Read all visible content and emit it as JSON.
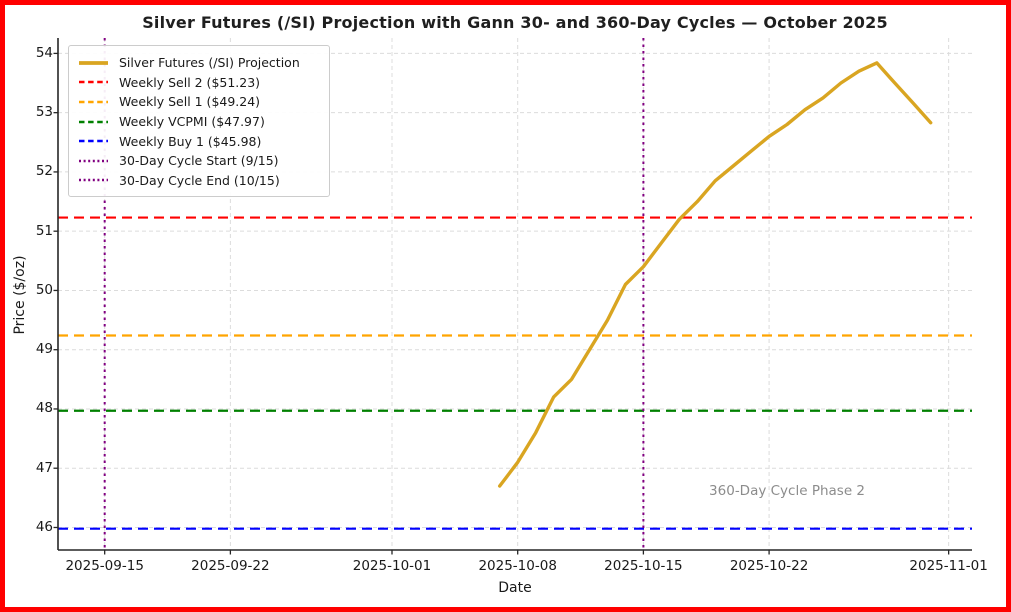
{
  "frame": {
    "border_color": "#ff0000",
    "background": "#ffffff"
  },
  "chart_data": {
    "type": "line",
    "title": "Silver Futures (/SI) Projection with Gann 30- and 360-Day Cycles — October 2025",
    "xlabel": "Date",
    "ylabel": "Price ($/oz)",
    "grid": true,
    "grid_color": "#dcdcdc",
    "legend_position": "upper-left",
    "ylim": [
      45.62,
      54.26
    ],
    "xlim_days": [
      -2.6,
      48.3
    ],
    "yticks": [
      46,
      47,
      48,
      49,
      50,
      51,
      52,
      53,
      54
    ],
    "xticks": [
      "2025-09-15",
      "2025-09-22",
      "2025-10-01",
      "2025-10-08",
      "2025-10-15",
      "2025-10-22",
      "2025-11-01"
    ],
    "series": [
      {
        "name": "Silver Futures (/SI) Projection",
        "color": "#d9a521",
        "style": "solid",
        "x": [
          "2025-10-07",
          "2025-10-08",
          "2025-10-09",
          "2025-10-10",
          "2025-10-11",
          "2025-10-12",
          "2025-10-13",
          "2025-10-14",
          "2025-10-15",
          "2025-10-16",
          "2025-10-17",
          "2025-10-18",
          "2025-10-19",
          "2025-10-20",
          "2025-10-21",
          "2025-10-22",
          "2025-10-23",
          "2025-10-24",
          "2025-10-25",
          "2025-10-26",
          "2025-10-27",
          "2025-10-28",
          "2025-10-29",
          "2025-10-30",
          "2025-10-31"
        ],
        "values": [
          46.7,
          47.1,
          47.6,
          48.2,
          48.5,
          49.0,
          49.5,
          50.1,
          50.4,
          50.8,
          51.2,
          51.5,
          51.85,
          52.1,
          52.35,
          52.6,
          52.8,
          53.05,
          53.25,
          53.5,
          53.7,
          53.84,
          53.5,
          53.17,
          52.83
        ]
      }
    ],
    "hlines": [
      {
        "label": "Weekly Sell 2 ($51.23)",
        "value": 51.23,
        "color": "#ff0000",
        "style": "dashed"
      },
      {
        "label": "Weekly Sell 1 ($49.24)",
        "value": 49.24,
        "color": "#ffa500",
        "style": "dashed"
      },
      {
        "label": "Weekly VCPMI ($47.97)",
        "value": 47.97,
        "color": "#008000",
        "style": "dashed"
      },
      {
        "label": "Weekly Buy 1 ($45.98)",
        "value": 45.98,
        "color": "#0000ff",
        "style": "dashed"
      }
    ],
    "vlines": [
      {
        "label": "30-Day Cycle Start (9/15)",
        "date": "2025-09-15",
        "color": "#800080",
        "style": "dotted"
      },
      {
        "label": "30-Day Cycle End (10/15)",
        "date": "2025-10-15",
        "color": "#800080",
        "style": "dotted"
      }
    ],
    "annotation": {
      "text": "360-Day Cycle Phase 2",
      "x": "2025-10-23",
      "y": 46.62,
      "color": "#8c8c8c"
    }
  }
}
